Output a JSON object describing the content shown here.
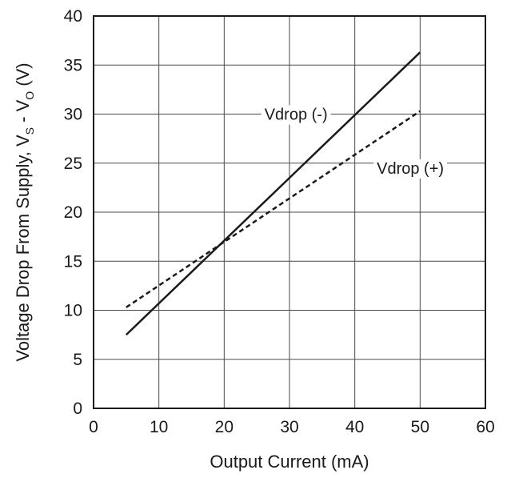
{
  "chart_data": {
    "type": "line",
    "title": "",
    "xlabel": "Output Current (mA)",
    "ylabel": {
      "prefix": "Voltage Drop From Supply, V",
      "sub1": "S",
      "middle": " - V",
      "sub2": "O",
      "suffix": " (V)"
    },
    "xlim": [
      0,
      60
    ],
    "ylim": [
      0,
      40
    ],
    "xticks": [
      0,
      10,
      20,
      30,
      40,
      50,
      60
    ],
    "yticks": [
      0,
      5,
      10,
      15,
      20,
      25,
      30,
      35,
      40
    ],
    "grid": true,
    "legend": "inline labels",
    "series": [
      {
        "name": "Vdrop (-)",
        "style": "solid",
        "color": "#1a1a1a",
        "x": [
          5,
          50
        ],
        "y": [
          7.5,
          36.3
        ],
        "label_at": [
          31,
          30
        ]
      },
      {
        "name": "Vdrop (+)",
        "style": "dashed",
        "color": "#1a1a1a",
        "x": [
          5,
          50
        ],
        "y": [
          10.3,
          30.3
        ],
        "label_at": [
          48.5,
          24.5
        ]
      }
    ]
  }
}
